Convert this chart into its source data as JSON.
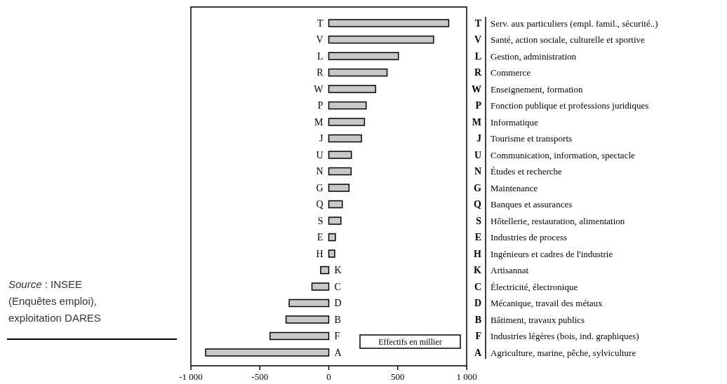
{
  "chart_data": {
    "type": "bar",
    "orientation": "horizontal",
    "categories": [
      "T",
      "V",
      "L",
      "R",
      "W",
      "P",
      "M",
      "J",
      "U",
      "N",
      "G",
      "Q",
      "S",
      "E",
      "H",
      "K",
      "C",
      "D",
      "B",
      "F",
      "A"
    ],
    "values": [
      870,
      760,
      505,
      423,
      340,
      271,
      259,
      237,
      164,
      162,
      147,
      98,
      88,
      48,
      43,
      -59,
      -122,
      -287,
      -310,
      -426,
      -893
    ],
    "color": "#c8c8c8",
    "xlim": [
      -1000,
      1000
    ],
    "xticks": [
      {
        "value": -1000,
        "label": "-1 000"
      },
      -500,
      0,
      500,
      {
        "value": 1000,
        "label": "1 000"
      }
    ],
    "grid": false,
    "annotations": [
      "Effectifs en millier",
      "Source : INSEE (Enquêtes emploi), exploitation DARES",
      "Serv. aux particuliers (empl. famil., sécurité..)",
      "Santé, action sociale, culturelle et sportive",
      "Gestion, administration",
      "Commerce",
      "Enseignement, formation",
      "Fonction publique et professions juridiques",
      "Informatique",
      "Tourisme et transports",
      "Communication, information, spectacle",
      "Études et recherche",
      "Maintenance",
      "Banques et assurances",
      "Hôtellerie, restauration, alimentation",
      "Industries de process",
      "Ingénieurs et cadres de l'industrie",
      "Artisannat",
      "Électricité, électronique",
      "Mécanique, travail des métaux",
      "Bâtiment, travaux publics",
      "Industries légères (bois, ind. graphiques)",
      "Agriculture, marine, pêche, sylviculture"
    ]
  }
}
